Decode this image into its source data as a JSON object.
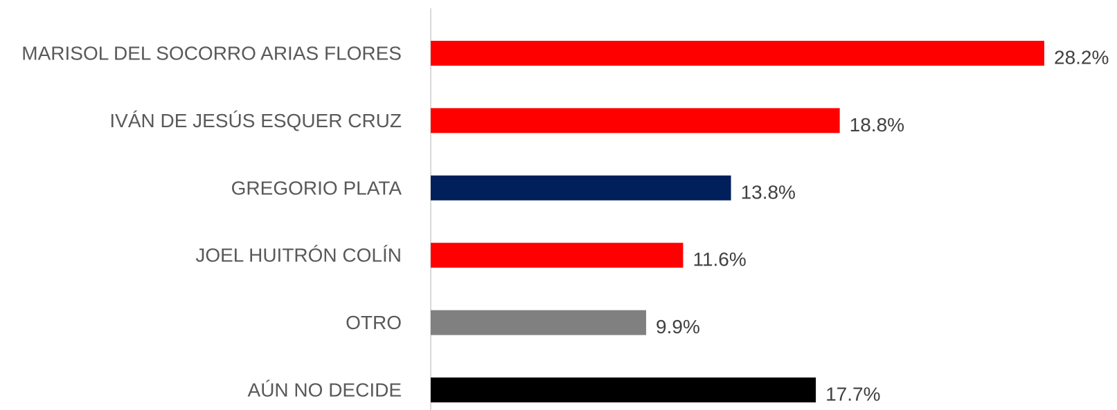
{
  "chart_data": {
    "type": "bar",
    "orientation": "horizontal",
    "categories": [
      "MARISOL DEL SOCORRO ARIAS FLORES",
      "IVÁN DE JESÚS ESQUER CRUZ",
      "GREGORIO PLATA",
      "JOEL HUITRÓN COLÍN",
      "OTRO",
      "AÚN NO DECIDE"
    ],
    "values": [
      28.2,
      18.8,
      13.8,
      11.6,
      9.9,
      17.7
    ],
    "value_labels": [
      "28.2%",
      "18.8%",
      "13.8%",
      "11.6%",
      "9.9%",
      "17.7%"
    ],
    "colors": [
      "#ff0000",
      "#ff0000",
      "#001f5b",
      "#ff0000",
      "#808080",
      "#000000"
    ],
    "xlim": [
      0,
      28.2
    ],
    "grid": false,
    "legend": "none"
  }
}
